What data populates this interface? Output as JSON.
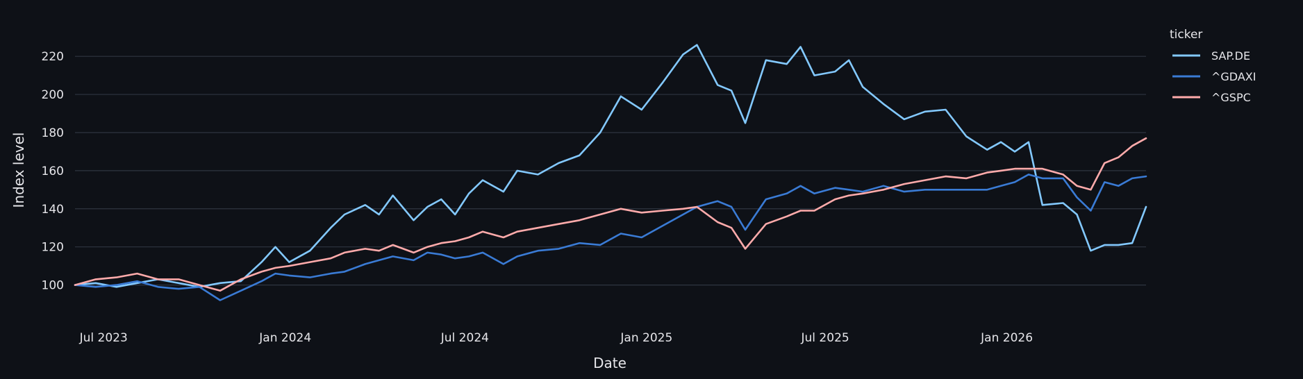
{
  "chart_data": {
    "type": "line",
    "title": "",
    "xlabel": "Date",
    "ylabel": "Index level",
    "legend_title": "ticker",
    "legend_position": "right",
    "grid": true,
    "x_range": [
      "2023-06-02",
      "2026-05-22"
    ],
    "ylim": [
      82,
      235
    ],
    "x_ticks": [
      {
        "date": "2023-07-01",
        "label": "Jul 2023"
      },
      {
        "date": "2024-01-01",
        "label": "Jan 2024"
      },
      {
        "date": "2024-07-01",
        "label": "Jul 2024"
      },
      {
        "date": "2025-01-01",
        "label": "Jan 2025"
      },
      {
        "date": "2025-07-01",
        "label": "Jul 2025"
      },
      {
        "date": "2026-01-01",
        "label": "Jan 2026"
      }
    ],
    "y_ticks": [
      100,
      120,
      140,
      160,
      180,
      200,
      220
    ],
    "series": [
      {
        "name": "SAP.DE",
        "color": "#83c9ff",
        "points": [
          [
            "2023-06-02",
            100
          ],
          [
            "2023-06-23",
            101
          ],
          [
            "2023-07-14",
            99
          ],
          [
            "2023-08-04",
            101
          ],
          [
            "2023-08-25",
            103
          ],
          [
            "2023-09-15",
            101
          ],
          [
            "2023-10-06",
            99
          ],
          [
            "2023-10-27",
            101
          ],
          [
            "2023-11-17",
            102
          ],
          [
            "2023-12-08",
            112
          ],
          [
            "2023-12-22",
            120
          ],
          [
            "2024-01-05",
            112
          ],
          [
            "2024-01-26",
            118
          ],
          [
            "2024-02-16",
            130
          ],
          [
            "2024-03-01",
            137
          ],
          [
            "2024-03-22",
            142
          ],
          [
            "2024-04-05",
            137
          ],
          [
            "2024-04-19",
            147
          ],
          [
            "2024-05-10",
            134
          ],
          [
            "2024-05-24",
            141
          ],
          [
            "2024-06-07",
            145
          ],
          [
            "2024-06-21",
            137
          ],
          [
            "2024-07-05",
            148
          ],
          [
            "2024-07-19",
            155
          ],
          [
            "2024-08-09",
            149
          ],
          [
            "2024-08-23",
            160
          ],
          [
            "2024-09-13",
            158
          ],
          [
            "2024-10-04",
            164
          ],
          [
            "2024-10-25",
            168
          ],
          [
            "2024-11-15",
            180
          ],
          [
            "2024-12-06",
            199
          ],
          [
            "2024-12-27",
            192
          ],
          [
            "2025-01-17",
            206
          ],
          [
            "2025-02-07",
            221
          ],
          [
            "2025-02-21",
            226
          ],
          [
            "2025-03-14",
            205
          ],
          [
            "2025-03-28",
            202
          ],
          [
            "2025-04-11",
            185
          ],
          [
            "2025-05-02",
            218
          ],
          [
            "2025-05-23",
            216
          ],
          [
            "2025-06-06",
            225
          ],
          [
            "2025-06-20",
            210
          ],
          [
            "2025-07-11",
            212
          ],
          [
            "2025-07-25",
            218
          ],
          [
            "2025-08-08",
            204
          ],
          [
            "2025-08-29",
            195
          ],
          [
            "2025-09-19",
            187
          ],
          [
            "2025-10-10",
            191
          ],
          [
            "2025-10-31",
            192
          ],
          [
            "2025-11-21",
            178
          ],
          [
            "2025-12-12",
            171
          ],
          [
            "2025-12-26",
            175
          ],
          [
            "2026-01-09",
            170
          ],
          [
            "2026-01-23",
            175
          ],
          [
            "2026-02-06",
            142
          ],
          [
            "2026-02-27",
            143
          ],
          [
            "2026-03-13",
            137
          ],
          [
            "2026-03-27",
            118
          ],
          [
            "2026-04-10",
            121
          ],
          [
            "2026-04-24",
            121
          ],
          [
            "2026-05-08",
            122
          ],
          [
            "2026-05-22",
            141
          ]
        ]
      },
      {
        "name": "^GDAXI",
        "color": "#3a7bd5",
        "points": [
          [
            "2023-06-02",
            100
          ],
          [
            "2023-06-23",
            99
          ],
          [
            "2023-07-14",
            100
          ],
          [
            "2023-08-04",
            102
          ],
          [
            "2023-08-25",
            99
          ],
          [
            "2023-09-15",
            98
          ],
          [
            "2023-10-06",
            99
          ],
          [
            "2023-10-27",
            92
          ],
          [
            "2023-11-17",
            97
          ],
          [
            "2023-12-08",
            102
          ],
          [
            "2023-12-22",
            106
          ],
          [
            "2024-01-05",
            105
          ],
          [
            "2024-01-26",
            104
          ],
          [
            "2024-02-16",
            106
          ],
          [
            "2024-03-01",
            107
          ],
          [
            "2024-03-22",
            111
          ],
          [
            "2024-04-05",
            113
          ],
          [
            "2024-04-19",
            115
          ],
          [
            "2024-05-10",
            113
          ],
          [
            "2024-05-24",
            117
          ],
          [
            "2024-06-07",
            116
          ],
          [
            "2024-06-21",
            114
          ],
          [
            "2024-07-05",
            115
          ],
          [
            "2024-07-19",
            117
          ],
          [
            "2024-08-09",
            111
          ],
          [
            "2024-08-23",
            115
          ],
          [
            "2024-09-13",
            118
          ],
          [
            "2024-10-04",
            119
          ],
          [
            "2024-10-25",
            122
          ],
          [
            "2024-11-15",
            121
          ],
          [
            "2024-12-06",
            127
          ],
          [
            "2024-12-27",
            125
          ],
          [
            "2025-01-17",
            131
          ],
          [
            "2025-02-07",
            137
          ],
          [
            "2025-02-21",
            141
          ],
          [
            "2025-03-14",
            144
          ],
          [
            "2025-03-28",
            141
          ],
          [
            "2025-04-11",
            129
          ],
          [
            "2025-05-02",
            145
          ],
          [
            "2025-05-23",
            148
          ],
          [
            "2025-06-06",
            152
          ],
          [
            "2025-06-20",
            148
          ],
          [
            "2025-07-11",
            151
          ],
          [
            "2025-07-25",
            150
          ],
          [
            "2025-08-08",
            149
          ],
          [
            "2025-08-29",
            152
          ],
          [
            "2025-09-19",
            149
          ],
          [
            "2025-10-10",
            150
          ],
          [
            "2025-10-31",
            150
          ],
          [
            "2025-11-21",
            150
          ],
          [
            "2025-12-12",
            150
          ],
          [
            "2025-12-26",
            152
          ],
          [
            "2026-01-09",
            154
          ],
          [
            "2026-01-23",
            158
          ],
          [
            "2026-02-06",
            156
          ],
          [
            "2026-02-27",
            156
          ],
          [
            "2026-03-13",
            146
          ],
          [
            "2026-03-27",
            139
          ],
          [
            "2026-04-10",
            154
          ],
          [
            "2026-04-24",
            152
          ],
          [
            "2026-05-08",
            156
          ],
          [
            "2026-05-22",
            157
          ]
        ]
      },
      {
        "name": "^GSPC",
        "color": "#ffabab",
        "points": [
          [
            "2023-06-02",
            100
          ],
          [
            "2023-06-23",
            103
          ],
          [
            "2023-07-14",
            104
          ],
          [
            "2023-08-04",
            106
          ],
          [
            "2023-08-25",
            103
          ],
          [
            "2023-09-15",
            103
          ],
          [
            "2023-10-06",
            100
          ],
          [
            "2023-10-27",
            97
          ],
          [
            "2023-11-17",
            103
          ],
          [
            "2023-12-08",
            107
          ],
          [
            "2023-12-22",
            109
          ],
          [
            "2024-01-05",
            110
          ],
          [
            "2024-01-26",
            112
          ],
          [
            "2024-02-16",
            114
          ],
          [
            "2024-03-01",
            117
          ],
          [
            "2024-03-22",
            119
          ],
          [
            "2024-04-05",
            118
          ],
          [
            "2024-04-19",
            121
          ],
          [
            "2024-05-10",
            117
          ],
          [
            "2024-05-24",
            120
          ],
          [
            "2024-06-07",
            122
          ],
          [
            "2024-06-21",
            123
          ],
          [
            "2024-07-05",
            125
          ],
          [
            "2024-07-19",
            128
          ],
          [
            "2024-08-09",
            125
          ],
          [
            "2024-08-23",
            128
          ],
          [
            "2024-09-13",
            130
          ],
          [
            "2024-10-04",
            132
          ],
          [
            "2024-10-25",
            134
          ],
          [
            "2024-11-15",
            137
          ],
          [
            "2024-12-06",
            140
          ],
          [
            "2024-12-27",
            138
          ],
          [
            "2025-01-17",
            139
          ],
          [
            "2025-02-07",
            140
          ],
          [
            "2025-02-21",
            141
          ],
          [
            "2025-03-14",
            133
          ],
          [
            "2025-03-28",
            130
          ],
          [
            "2025-04-11",
            119
          ],
          [
            "2025-05-02",
            132
          ],
          [
            "2025-05-23",
            136
          ],
          [
            "2025-06-06",
            139
          ],
          [
            "2025-06-20",
            139
          ],
          [
            "2025-07-11",
            145
          ],
          [
            "2025-07-25",
            147
          ],
          [
            "2025-08-08",
            148
          ],
          [
            "2025-08-29",
            150
          ],
          [
            "2025-09-19",
            153
          ],
          [
            "2025-10-10",
            155
          ],
          [
            "2025-10-31",
            157
          ],
          [
            "2025-11-21",
            156
          ],
          [
            "2025-12-12",
            159
          ],
          [
            "2025-12-26",
            160
          ],
          [
            "2026-01-09",
            161
          ],
          [
            "2026-01-23",
            161
          ],
          [
            "2026-02-06",
            161
          ],
          [
            "2026-02-27",
            158
          ],
          [
            "2026-03-13",
            152
          ],
          [
            "2026-03-27",
            150
          ],
          [
            "2026-04-10",
            164
          ],
          [
            "2026-04-24",
            167
          ],
          [
            "2026-05-08",
            173
          ],
          [
            "2026-05-22",
            177
          ]
        ]
      }
    ]
  }
}
